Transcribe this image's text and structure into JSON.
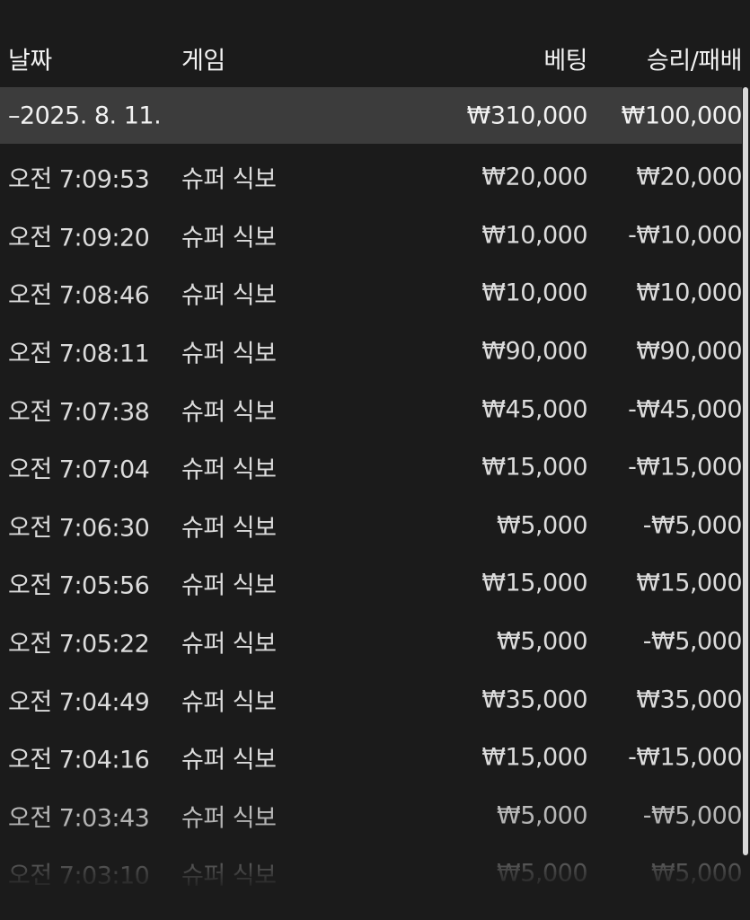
{
  "header": {
    "date": "날짜",
    "game": "게임",
    "bet": "베팅",
    "result": "승리/패배"
  },
  "group": {
    "toggle": "–",
    "date": "2025. 8. 11.",
    "bet": "₩310,000",
    "result": "₩100,000"
  },
  "rows": [
    {
      "time": "오전 7:09:53",
      "game": "슈퍼 식보",
      "bet": "₩20,000",
      "result": "₩20,000"
    },
    {
      "time": "오전 7:09:20",
      "game": "슈퍼 식보",
      "bet": "₩10,000",
      "result": "-₩10,000"
    },
    {
      "time": "오전 7:08:46",
      "game": "슈퍼 식보",
      "bet": "₩10,000",
      "result": "₩10,000"
    },
    {
      "time": "오전 7:08:11",
      "game": "슈퍼 식보",
      "bet": "₩90,000",
      "result": "₩90,000"
    },
    {
      "time": "오전 7:07:38",
      "game": "슈퍼 식보",
      "bet": "₩45,000",
      "result": "-₩45,000"
    },
    {
      "time": "오전 7:07:04",
      "game": "슈퍼 식보",
      "bet": "₩15,000",
      "result": "-₩15,000"
    },
    {
      "time": "오전 7:06:30",
      "game": "슈퍼 식보",
      "bet": "₩5,000",
      "result": "-₩5,000"
    },
    {
      "time": "오전 7:05:56",
      "game": "슈퍼 식보",
      "bet": "₩15,000",
      "result": "₩15,000"
    },
    {
      "time": "오전 7:05:22",
      "game": "슈퍼 식보",
      "bet": "₩5,000",
      "result": "-₩5,000"
    },
    {
      "time": "오전 7:04:49",
      "game": "슈퍼 식보",
      "bet": "₩35,000",
      "result": "₩35,000"
    },
    {
      "time": "오전 7:04:16",
      "game": "슈퍼 식보",
      "bet": "₩15,000",
      "result": "-₩15,000"
    },
    {
      "time": "오전 7:03:43",
      "game": "슈퍼 식보",
      "bet": "₩5,000",
      "result": "-₩5,000"
    },
    {
      "time": "오전 7:03:10",
      "game": "슈퍼 식보",
      "bet": "₩5,000",
      "result": "₩5,000"
    }
  ]
}
